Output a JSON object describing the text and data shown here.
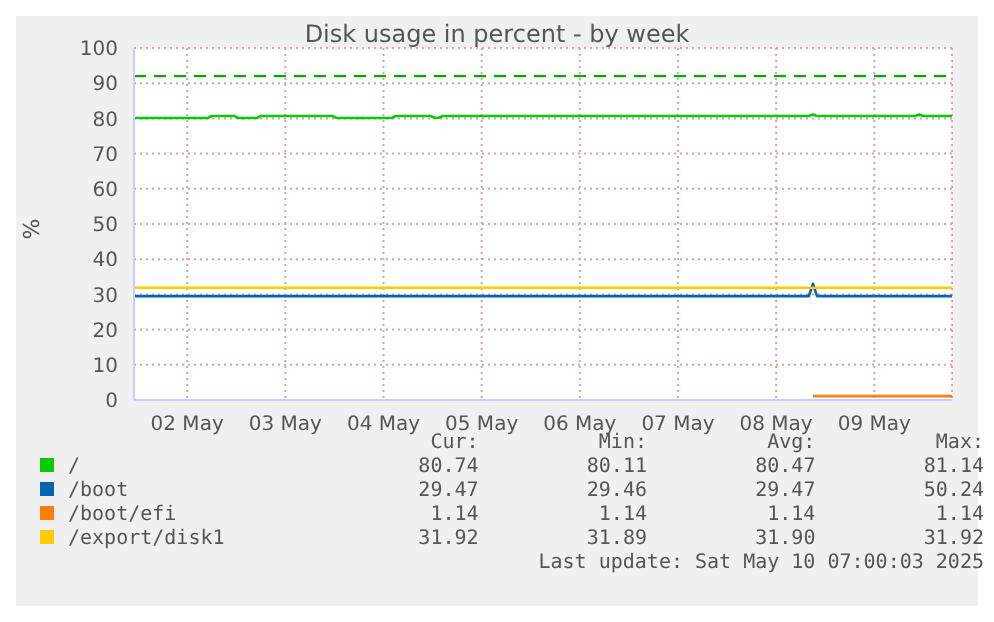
{
  "chart_data": {
    "type": "line",
    "title": "Disk usage in percent - by week",
    "ylabel": "%",
    "xlim": [
      "2025-05-01T23:00",
      "2025-05-10T07:00"
    ],
    "xticks": [
      {
        "value": "2025-05-02T12:00",
        "label": "02 May"
      },
      {
        "value": "2025-05-03T12:00",
        "label": "03 May"
      },
      {
        "value": "2025-05-04T12:00",
        "label": "04 May"
      },
      {
        "value": "2025-05-05T12:00",
        "label": "05 May"
      },
      {
        "value": "2025-05-06T12:00",
        "label": "06 May"
      },
      {
        "value": "2025-05-07T12:00",
        "label": "07 May"
      },
      {
        "value": "2025-05-08T12:00",
        "label": "08 May"
      },
      {
        "value": "2025-05-09T12:00",
        "label": "09 May"
      }
    ],
    "ylim": [
      0,
      100
    ],
    "yticks": [
      0,
      10,
      20,
      30,
      40,
      50,
      60,
      70,
      80,
      90,
      100
    ],
    "grid": true,
    "legend": "bottom",
    "line_style": "solid",
    "marker": "none",
    "series": [
      {
        "name": "/",
        "color": "#00cc00",
        "x": [
          "2025-05-01T23:00",
          "2025-05-02T17:00",
          "2025-05-02T18:00",
          "2025-05-02T23:30",
          "2025-05-03T00:30",
          "2025-05-03T05:00",
          "2025-05-03T06:00",
          "2025-05-03T23:30",
          "2025-05-04T00:30",
          "2025-05-04T14:00",
          "2025-05-04T15:00",
          "2025-05-04T23:30",
          "2025-05-05T00:30",
          "2025-05-05T01:30",
          "2025-05-05T02:30",
          "2025-05-08T20:00",
          "2025-05-08T21:00",
          "2025-05-08T22:00",
          "2025-05-09T22:00",
          "2025-05-09T23:00",
          "2025-05-10T00:00",
          "2025-05-10T07:00"
        ],
        "values": [
          80.1,
          80.1,
          80.7,
          80.7,
          80.1,
          80.1,
          80.7,
          80.7,
          80.1,
          80.1,
          80.7,
          80.7,
          80.2,
          80.2,
          80.7,
          80.7,
          81.1,
          80.7,
          80.7,
          81.1,
          80.7,
          80.7
        ]
      },
      {
        "name": "/boot",
        "color": "#0066b3",
        "x": [
          "2025-05-01T23:00",
          "2025-05-08T20:00",
          "2025-05-08T21:00",
          "2025-05-08T22:00",
          "2025-05-10T07:00"
        ],
        "values": [
          29.5,
          29.5,
          33,
          29.5,
          29.5
        ]
      },
      {
        "name": "/boot/efi",
        "color": "#ff8000",
        "x": [
          "2025-05-08T21:00",
          "2025-05-10T07:00"
        ],
        "values": [
          1.1,
          1.1
        ]
      },
      {
        "name": "/export/disk1",
        "color": "#ffcc00",
        "x": [
          "2025-05-01T23:00",
          "2025-05-10T07:00"
        ],
        "values": [
          31.9,
          31.9
        ]
      }
    ],
    "ref_lines": [
      {
        "axis": "y",
        "value": 92,
        "color": "#00aa00",
        "line_style": "dashed"
      }
    ],
    "annotations": [
      "Cur:",
      "Min:",
      "Avg:",
      "Max:",
      "80.74",
      "80.11",
      "80.47",
      "81.14",
      "29.47",
      "29.46",
      "29.47",
      "50.24",
      "1.14",
      "1.14",
      "1.14",
      "1.14",
      "31.92",
      "31.89",
      "31.90",
      "31.92",
      "Last update: Sat May 10 07:00:03 2025"
    ]
  }
}
